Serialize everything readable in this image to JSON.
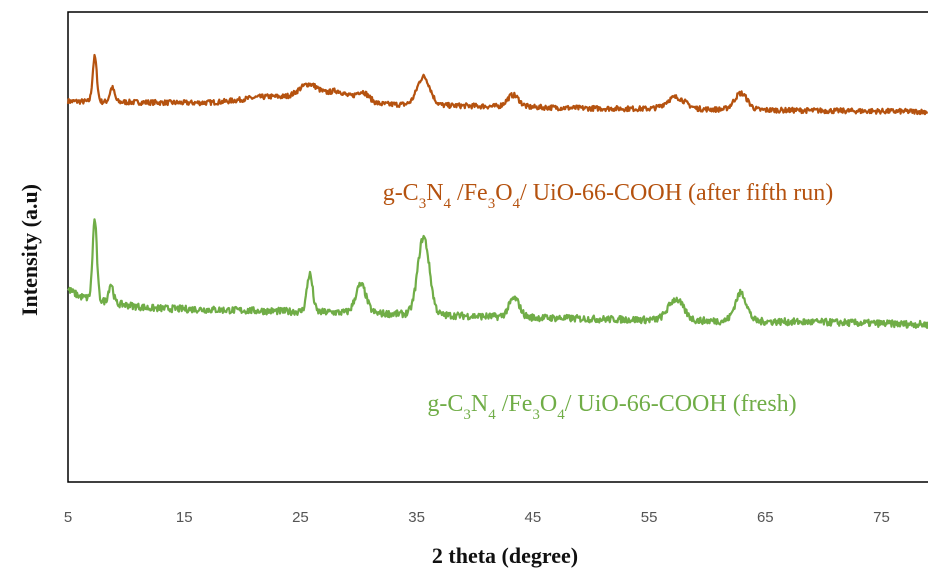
{
  "chart_data": {
    "type": "line",
    "title": "",
    "xlabel": "2 theta (degree)",
    "ylabel": "Intensity (a.u)",
    "xlim": [
      5,
      79
    ],
    "ylim": [
      0,
      100
    ],
    "xticks": [
      "5",
      "15",
      "25",
      "35",
      "45",
      "55",
      "65",
      "75"
    ],
    "xtick_values": [
      5,
      15,
      25,
      35,
      45,
      55,
      65,
      75
    ],
    "grid": false,
    "legend": "none",
    "series": [
      {
        "key": "after",
        "label_parts": [
          {
            "t": "g-C"
          },
          {
            "t": "3",
            "sub": true
          },
          {
            "t": "N"
          },
          {
            "t": "4",
            "sub": true
          },
          {
            "t": " /Fe"
          },
          {
            "t": "3",
            "sub": true
          },
          {
            "t": "O"
          },
          {
            "t": "4",
            "sub": true
          },
          {
            "t": "/ UiO-66-COOH (after fifth run)"
          }
        ],
        "color": "#b5520f",
        "baseline": [
          [
            5,
            81
          ],
          [
            20,
            80.5
          ],
          [
            30,
            80.5
          ],
          [
            40,
            80.0
          ],
          [
            50,
            79.5
          ],
          [
            60,
            79.3
          ],
          [
            70,
            79.0
          ],
          [
            79,
            78.8
          ]
        ],
        "peaks": [
          [
            7.3,
            9.5,
            0.18
          ],
          [
            8.8,
            3,
            0.2
          ],
          [
            22.5,
            1.5,
            2.5
          ],
          [
            25.8,
            3.5,
            0.9
          ],
          [
            28.2,
            2.5,
            0.8
          ],
          [
            30.3,
            2.5,
            0.6
          ],
          [
            35.6,
            6,
            0.55
          ],
          [
            43.3,
            2.5,
            0.5
          ],
          [
            57.3,
            2.5,
            0.8
          ],
          [
            62.9,
            3.5,
            0.55
          ]
        ],
        "noise": 0.55
      },
      {
        "key": "fresh",
        "label_parts": [
          {
            "t": "g-C"
          },
          {
            "t": "3",
            "sub": true
          },
          {
            "t": "N"
          },
          {
            "t": "4",
            "sub": true
          },
          {
            "t": " /Fe"
          },
          {
            "t": "3",
            "sub": true
          },
          {
            "t": "O"
          },
          {
            "t": "4",
            "sub": true
          },
          {
            "t": "/ UiO-66-COOH (fresh)"
          }
        ],
        "color": "#70ad47",
        "baseline": [
          [
            5,
            41
          ],
          [
            6,
            39.5
          ],
          [
            9,
            38
          ],
          [
            12,
            37
          ],
          [
            20,
            36.5
          ],
          [
            30,
            36
          ],
          [
            40,
            35.3
          ],
          [
            50,
            34.7
          ],
          [
            60,
            34.3
          ],
          [
            70,
            34.0
          ],
          [
            79,
            33.5
          ]
        ],
        "peaks": [
          [
            7.3,
            17,
            0.18
          ],
          [
            8.7,
            4,
            0.2
          ],
          [
            25.8,
            8,
            0.25
          ],
          [
            30.2,
            6,
            0.45
          ],
          [
            35.6,
            16.5,
            0.5
          ],
          [
            43.4,
            4,
            0.45
          ],
          [
            57.3,
            4.5,
            0.65
          ],
          [
            62.9,
            6,
            0.5
          ]
        ],
        "noise": 0.75
      }
    ]
  }
}
